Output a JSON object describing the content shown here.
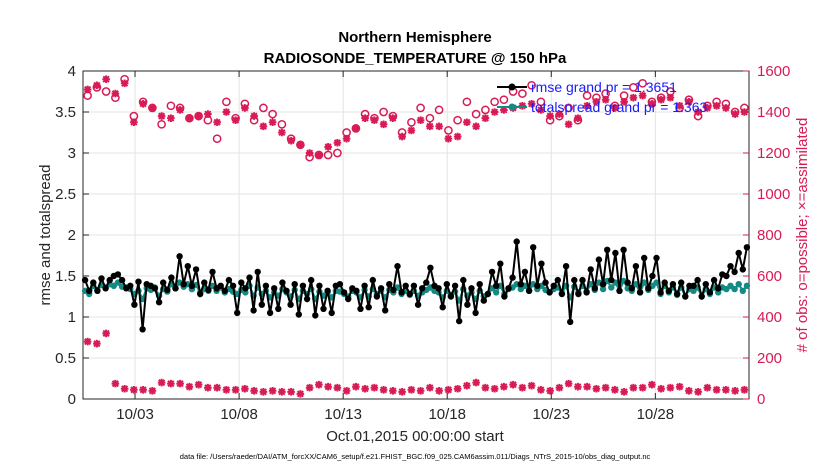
{
  "chart_data": {
    "type": "line",
    "title": "Northern Hemisphere",
    "subtitle": "RADIOSONDE_TEMPERATURE @ 150 hPa",
    "xlabel": "Oct.01,2015 00:00:00 start",
    "ylabel_left": "rmse and totalspread",
    "ylabel_right": "# of obs: o=possible; ×=assimilated",
    "footnote": "data file: /Users/raeder/DAI/ATM_forcXX/CAM6_setup/f.e21.FHIST_BGC.f09_025.CAM6assim.011/Diags_NTrS_2015-10/obs_diag_output.nc",
    "xlim": [
      0,
      32
    ],
    "ylim_left": [
      0,
      4
    ],
    "ylim_right": [
      0,
      1600
    ],
    "x_ticks": [
      2.5,
      7.5,
      12.5,
      17.5,
      22.5,
      27.5
    ],
    "x_tick_labels": [
      "10/03",
      "10/08",
      "10/13",
      "10/18",
      "10/23",
      "10/28"
    ],
    "y_ticks_left": [
      0,
      0.5,
      1,
      1.5,
      2,
      2.5,
      3,
      3.5,
      4
    ],
    "y_tick_labels_left": [
      "0",
      "0.5",
      "1",
      "1.5",
      "2",
      "2.5",
      "3",
      "3.5",
      "4"
    ],
    "y_ticks_right": [
      0,
      200,
      400,
      600,
      800,
      1000,
      1200,
      1400,
      1600
    ],
    "y_tick_labels_right": [
      "0",
      "200",
      "400",
      "600",
      "800",
      "1000",
      "1200",
      "1400",
      "1600"
    ],
    "legend": [
      {
        "label": "rmse grand pr = 1.3651",
        "color": "#000000"
      },
      {
        "label": "totalspread grand pr = 1.363",
        "color": "#138a84"
      }
    ],
    "legend_text_color": "#1a1aff",
    "grid": true,
    "colors": {
      "rmse": "#000000",
      "spread": "#138a84",
      "obs": "#d81b55"
    },
    "series": [
      {
        "name": "rmse",
        "axis": "left",
        "values": [
          1.45,
          1.32,
          1.42,
          1.32,
          1.47,
          1.35,
          1.45,
          1.5,
          1.52,
          1.45,
          1.35,
          1.38,
          1.15,
          1.43,
          0.85,
          1.4,
          1.38,
          1.35,
          1.18,
          1.42,
          1.33,
          1.48,
          1.35,
          1.74,
          1.4,
          1.62,
          1.38,
          1.58,
          1.28,
          1.42,
          1.33,
          1.55,
          1.35,
          1.38,
          1.32,
          1.45,
          1.38,
          1.05,
          1.42,
          1.35,
          1.48,
          1.08,
          1.55,
          1.15,
          1.38,
          1.05,
          1.35,
          1.1,
          1.42,
          1.32,
          1.15,
          1.4,
          1.03,
          1.38,
          1.22,
          1.45,
          1.02,
          1.38,
          1.1,
          1.32,
          1.05,
          1.38,
          1.4,
          1.3,
          1.22,
          1.35,
          1.32,
          1.1,
          1.38,
          1.12,
          1.45,
          1.25,
          1.35,
          1.08,
          1.4,
          1.33,
          1.62,
          1.3,
          1.38,
          1.28,
          1.38,
          1.15,
          1.35,
          1.42,
          1.6,
          1.38,
          1.35,
          1.12,
          1.4,
          1.25,
          1.38,
          0.95,
          1.45,
          1.15,
          1.35,
          1.05,
          1.4,
          1.2,
          1.28,
          1.55,
          1.38,
          1.65,
          1.25,
          1.35,
          1.48,
          1.92,
          1.4,
          1.55,
          1.32,
          1.85,
          1.38,
          1.65,
          1.42,
          1.3,
          1.38,
          1.45,
          1.28,
          1.62,
          0.94,
          1.45,
          1.28,
          1.45,
          1.3,
          1.58,
          1.35,
          1.7,
          1.4,
          1.82,
          1.45,
          1.78,
          1.32,
          1.82,
          1.42,
          1.35,
          1.62,
          1.3,
          1.72,
          1.35,
          1.5,
          1.72,
          1.3,
          1.42,
          1.32,
          1.4,
          1.28,
          1.42,
          1.25,
          1.38,
          1.38,
          1.45,
          1.25,
          1.4,
          1.3,
          1.45,
          1.35,
          1.52,
          1.5,
          1.62,
          1.55,
          1.78,
          1.58,
          1.85
        ]
      },
      {
        "name": "totalspread",
        "axis": "left",
        "values": [
          1.32,
          1.28,
          1.38,
          1.33,
          1.39,
          1.36,
          1.4,
          1.38,
          1.42,
          1.37,
          1.36,
          1.34,
          1.28,
          1.32,
          1.22,
          1.35,
          1.33,
          1.36,
          1.26,
          1.34,
          1.31,
          1.4,
          1.35,
          1.42,
          1.37,
          1.4,
          1.34,
          1.39,
          1.3,
          1.34,
          1.32,
          1.38,
          1.32,
          1.36,
          1.3,
          1.34,
          1.31,
          1.28,
          1.33,
          1.3,
          1.38,
          1.26,
          1.36,
          1.28,
          1.32,
          1.24,
          1.3,
          1.26,
          1.34,
          1.3,
          1.25,
          1.33,
          1.22,
          1.32,
          1.28,
          1.34,
          1.22,
          1.31,
          1.26,
          1.3,
          1.24,
          1.32,
          1.31,
          1.28,
          1.25,
          1.32,
          1.3,
          1.24,
          1.33,
          1.25,
          1.34,
          1.28,
          1.32,
          1.24,
          1.33,
          1.3,
          1.36,
          1.28,
          1.32,
          1.27,
          1.32,
          1.26,
          1.3,
          1.33,
          1.36,
          1.32,
          1.3,
          1.24,
          1.32,
          1.27,
          1.31,
          1.2,
          1.34,
          1.26,
          1.3,
          1.22,
          1.32,
          1.25,
          1.28,
          1.35,
          1.3,
          1.38,
          1.28,
          1.34,
          1.36,
          1.4,
          1.34,
          1.38,
          1.32,
          1.4,
          1.34,
          1.38,
          1.33,
          1.3,
          1.34,
          1.36,
          1.29,
          1.38,
          1.24,
          1.37,
          1.3,
          1.38,
          1.31,
          1.4,
          1.33,
          1.42,
          1.34,
          1.44,
          1.36,
          1.42,
          1.32,
          1.44,
          1.35,
          1.32,
          1.4,
          1.3,
          1.42,
          1.33,
          1.38,
          1.42,
          1.28,
          1.38,
          1.3,
          1.36,
          1.27,
          1.36,
          1.25,
          1.34,
          1.32,
          1.36,
          1.25,
          1.34,
          1.28,
          1.36,
          1.3,
          1.36,
          1.34,
          1.38,
          1.34,
          1.4,
          1.32,
          1.38
        ]
      },
      {
        "name": "obs_possible",
        "axis": "right",
        "values": [
          1480,
          1520,
          1500,
          1470,
          1560,
          1380,
          1450,
          1420,
          1340,
          1430,
          1420,
          1370,
          1380,
          1360,
          1270,
          1450,
          1370,
          1440,
          1360,
          1420,
          1390,
          1340,
          1270,
          1240,
          1180,
          1190,
          1190,
          1200,
          1300,
          1320,
          1390,
          1370,
          1400,
          1380,
          1300,
          1350,
          1420,
          1370,
          1410,
          1310,
          1360,
          1450,
          1390,
          1410,
          1450,
          1460,
          1500,
          1490,
          1530,
          1450,
          1360,
          1380,
          1420,
          1360,
          1480,
          1470,
          1490,
          1430,
          1480,
          1520,
          1540,
          1450,
          1470,
          1500,
          1420,
          1460,
          1380,
          1430,
          1450,
          1440,
          1400,
          1420
        ]
      },
      {
        "name": "obs_assimilated",
        "axis": "right",
        "values": [
          1510,
          1530,
          1560,
          1490,
          1540,
          1350,
          1440,
          1420,
          1380,
          1370,
          1410,
          1370,
          1380,
          1390,
          1350,
          1400,
          1360,
          1420,
          1380,
          1330,
          1350,
          1300,
          1260,
          1240,
          1200,
          1190,
          1230,
          1250,
          1270,
          1320,
          1370,
          1360,
          1340,
          1370,
          1280,
          1310,
          1360,
          1330,
          1330,
          1270,
          1280,
          1350,
          1330,
          1370,
          1400,
          1410,
          1420,
          1430,
          1440,
          1410,
          1380,
          1390,
          1340,
          1370,
          1430,
          1450,
          1460,
          1420,
          1450,
          1470,
          1480,
          1440,
          1460,
          1470,
          1430,
          1450,
          1400,
          1420,
          1430,
          1420,
          1390,
          1400
        ]
      },
      {
        "name": "obs_low_assimilated",
        "axis": "right",
        "values": [
          280,
          270,
          320,
          75,
          50,
          45,
          45,
          40,
          80,
          75,
          75,
          60,
          70,
          55,
          55,
          45,
          45,
          50,
          40,
          35,
          40,
          35,
          35,
          25,
          55,
          70,
          60,
          55,
          40,
          60,
          50,
          55,
          45,
          40,
          35,
          45,
          40,
          55,
          40,
          45,
          50,
          65,
          80,
          55,
          50,
          60,
          70,
          55,
          65,
          45,
          40,
          55,
          75,
          60,
          60,
          50,
          55,
          45,
          35,
          55,
          55,
          70,
          50,
          55,
          60,
          40,
          35,
          55,
          45,
          45,
          40,
          45
        ]
      }
    ]
  }
}
